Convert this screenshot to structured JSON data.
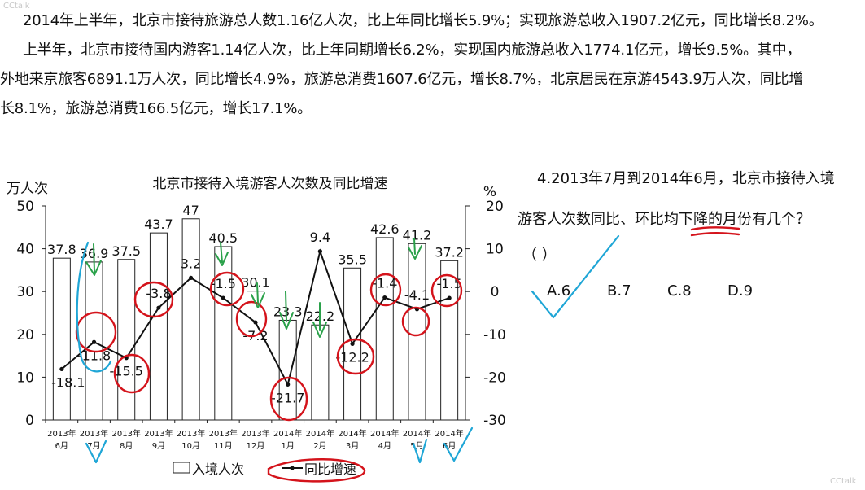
{
  "watermark_top": "CCtalk",
  "watermark_bottom": "CCtalk",
  "paragraphs": {
    "p1": "2014年上半年，北京市接待旅游总人数1.16亿人次，比上年同比增长5.9%；实现旅游总收入1907.2亿元，同比增长8.2%。",
    "p2a": "上半年，北京市接待国内游客1.14亿人次，比上年同期增长6.2%，实现国内旅游总收入1774.1亿元，增长9.5%。其中，",
    "p2b": "外地来京旅客6891.1万人次，同比增长4.9%，旅游总消费1607.6亿元，增长8.7%，北京居民在京游4543.9万人次，同比增",
    "p2c": "长8.1%，旅游总消费166.5亿元，增长17.1%。"
  },
  "question": {
    "line1": "4.2013年7月到2014年6月，北京市接待入境",
    "line2": "游客人次数同比、环比均下降的月份有几个？",
    "paren": "（      ）",
    "options": [
      "A.6",
      "B.7",
      "C.8",
      "D.9"
    ]
  },
  "chart_data": {
    "type": "bar",
    "title": "北京市接待入境游客人次数及同比增速",
    "ylabel_left": "万人次",
    "ylabel_right": "%",
    "ylim_left": [
      0,
      50
    ],
    "ylim_right": [
      -30,
      20
    ],
    "yticks_left": [
      "0",
      "10",
      "20",
      "30",
      "40",
      "50"
    ],
    "yticks_right": [
      "-30",
      "-20",
      "-10",
      "0",
      "10",
      "20"
    ],
    "categories": [
      [
        "2013年",
        "6月"
      ],
      [
        "2013年",
        "7月"
      ],
      [
        "2013年",
        "8月"
      ],
      [
        "2013年",
        "9月"
      ],
      [
        "2013年",
        "10月"
      ],
      [
        "2013年",
        "11月"
      ],
      [
        "2013年",
        "12月"
      ],
      [
        "2014年",
        "1月"
      ],
      [
        "2014年",
        "2月"
      ],
      [
        "2014年",
        "3月"
      ],
      [
        "2014年",
        "4月"
      ],
      [
        "2014年",
        "5月"
      ],
      [
        "2014年",
        "6月"
      ]
    ],
    "series": [
      {
        "name": "入境人次",
        "values": [
          37.8,
          36.9,
          37.5,
          43.7,
          47,
          40.5,
          30.1,
          23.3,
          22.2,
          35.5,
          42.6,
          41.2,
          37.2
        ],
        "labels": [
          "37.8",
          "36.9",
          "37.5",
          "43.7",
          "47",
          "40.5",
          "30.1",
          "23.3",
          "22.2",
          "35.5",
          "42.6",
          "41.2",
          "37.2"
        ]
      },
      {
        "name": "同比增速",
        "values": [
          -18.1,
          -11.8,
          -15.5,
          -3.8,
          3.2,
          -1.5,
          -7.2,
          -21.7,
          9.4,
          -12.2,
          -1.4,
          -4.1,
          -1.5
        ],
        "labels": [
          "-18.1",
          "-11.8",
          "-15.5",
          "-3.8",
          "3.2",
          "-1.5",
          "-7.2",
          "-21.7",
          "9.4",
          "-12.2",
          "-1.4",
          "-4.1",
          "-1.5"
        ]
      }
    ],
    "legend": [
      "入境人次",
      "同比增速"
    ],
    "legend_position": "bottom-center",
    "grid": false
  }
}
